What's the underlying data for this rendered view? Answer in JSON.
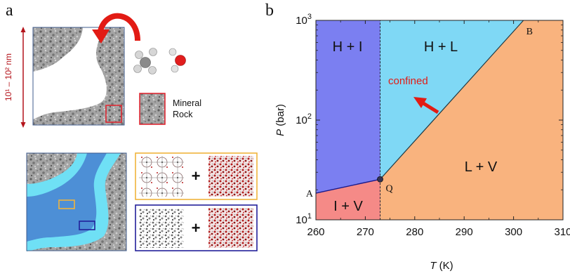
{
  "panel_a": {
    "label": "a",
    "scale_label": "10¹ – 10² nm",
    "mineral_label_line1": "Mineral",
    "mineral_label_line2": "Rock",
    "plus_symbol": "+",
    "colors": {
      "rock": "#9a9a9a",
      "pore": "#ffffff",
      "confined_water": "#6fe0f5",
      "bulk_water": "#4d8fd6",
      "arrow_red": "#e21b14",
      "scale_red": "#b4141b",
      "box_yellow": "#f0b43c",
      "box_blue": "#22209a",
      "box_red": "#e01e2a",
      "frame": "#3f5b8c"
    },
    "icons": [
      "methane-molecule-icon",
      "water-molecule-icon",
      "rotate-arrow-icon"
    ]
  },
  "panel_b": {
    "label": "b",
    "chart_data": {
      "type": "area",
      "xlabel": "T",
      "xunit": " (K)",
      "ylabel": "P",
      "yunit": " (bar)",
      "xlim": [
        260,
        310
      ],
      "ylim": [
        10,
        1000
      ],
      "yscale": "log",
      "xticks": [
        260,
        270,
        280,
        290,
        300,
        310
      ],
      "yticks": [
        {
          "value": 10,
          "base": "10",
          "exp": "1"
        },
        {
          "value": 100,
          "base": "10",
          "exp": "2"
        },
        {
          "value": 1000,
          "base": "10",
          "exp": "3"
        }
      ],
      "points": {
        "A": {
          "label": "A",
          "T": 260,
          "P": 18.5
        },
        "Q": {
          "label": "Q",
          "T": 273,
          "P": 25.5
        },
        "B": {
          "label": "B",
          "T": 302,
          "P": 1000
        }
      },
      "regions": [
        {
          "name": "H + I",
          "color": "#7b7ff1"
        },
        {
          "name": "H + L",
          "color": "#7fd8f5"
        },
        {
          "name": "L + V",
          "color": "#f9b37e"
        },
        {
          "name": "I + V",
          "color": "#f58a87"
        }
      ],
      "annotation": {
        "text": "confined",
        "color": "#e21b14"
      }
    }
  }
}
